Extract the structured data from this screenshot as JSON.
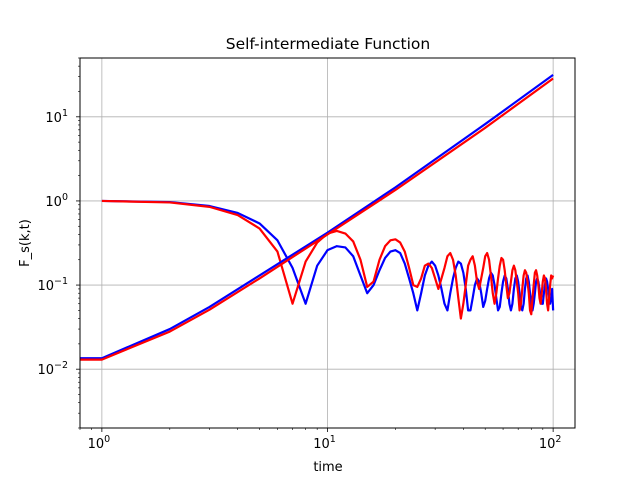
{
  "chart_data": {
    "type": "line",
    "title": "Self-intermediate Function",
    "xlabel": "time",
    "ylabel": "F_s(k,t)",
    "xscale": "log",
    "yscale": "log",
    "xlim": [
      0.8,
      125
    ],
    "ylim": [
      0.002,
      50
    ],
    "grid": true,
    "x_ticks": [
      {
        "value": 1,
        "base": "10",
        "exp": "0"
      },
      {
        "value": 10,
        "base": "10",
        "exp": "1"
      },
      {
        "value": 100,
        "base": "10",
        "exp": "2"
      }
    ],
    "y_ticks": [
      {
        "value": 0.01,
        "base": "10",
        "exp": "−2"
      },
      {
        "value": 0.1,
        "base": "10",
        "exp": "−1"
      },
      {
        "value": 1,
        "base": "10",
        "exp": "0"
      },
      {
        "value": 10,
        "base": "10",
        "exp": "1"
      }
    ],
    "series": [
      {
        "color": "#0000ff",
        "x": [
          1,
          2,
          3,
          4,
          5,
          6,
          7,
          8,
          9,
          10,
          11,
          12,
          13,
          14,
          15,
          16,
          17,
          18,
          19,
          20,
          21,
          22,
          23,
          24,
          25,
          26,
          27,
          28,
          29,
          30,
          31,
          32,
          33,
          34,
          35,
          36,
          37,
          38,
          39,
          40,
          41,
          42,
          43,
          44,
          45,
          46,
          47,
          48,
          49,
          50,
          51,
          52,
          53,
          54,
          55,
          56,
          57,
          58,
          59,
          60,
          61,
          62,
          63,
          64,
          65,
          66,
          67,
          68,
          69,
          70,
          71,
          72,
          73,
          74,
          75,
          76,
          77,
          78,
          79,
          80,
          81,
          82,
          83,
          84,
          85,
          86,
          87,
          88,
          89,
          90,
          91,
          92,
          93,
          94,
          95,
          96,
          97,
          98,
          99,
          100
        ],
        "y": [
          1.0,
          0.97,
          0.87,
          0.72,
          0.54,
          0.34,
          0.16,
          0.06,
          0.17,
          0.26,
          0.29,
          0.28,
          0.22,
          0.13,
          0.08,
          0.1,
          0.15,
          0.21,
          0.25,
          0.26,
          0.24,
          0.18,
          0.12,
          0.08,
          0.05,
          0.08,
          0.13,
          0.17,
          0.19,
          0.17,
          0.13,
          0.09,
          0.06,
          0.05,
          0.08,
          0.12,
          0.16,
          0.19,
          0.18,
          0.14,
          0.09,
          0.05,
          0.05,
          0.07,
          0.1,
          0.12,
          0.11,
          0.08,
          0.055,
          0.065,
          0.09,
          0.12,
          0.14,
          0.13,
          0.1,
          0.07,
          0.05,
          0.055,
          0.08,
          0.11,
          0.13,
          0.12,
          0.09,
          0.06,
          0.05,
          0.06,
          0.09,
          0.12,
          0.13,
          0.11,
          0.08,
          0.055,
          0.05,
          0.06,
          0.09,
          0.12,
          0.13,
          0.11,
          0.08,
          0.06,
          0.05,
          0.06,
          0.08,
          0.11,
          0.12,
          0.11,
          0.09,
          0.07,
          0.06,
          0.06,
          0.08,
          0.1,
          0.12,
          0.11,
          0.09,
          0.07,
          0.06,
          0.07,
          0.09,
          0.05
        ]
      },
      {
        "color": "#ff0000",
        "x": [
          1,
          2,
          3,
          4,
          5,
          6,
          7,
          8,
          9,
          10,
          11,
          12,
          13,
          14,
          15,
          16,
          17,
          18,
          19,
          20,
          21,
          22,
          23,
          24,
          25,
          26,
          27,
          28,
          29,
          30,
          31,
          32,
          33,
          34,
          35,
          36,
          37,
          38,
          39,
          40,
          41,
          42,
          43,
          44,
          45,
          46,
          47,
          48,
          49,
          50,
          51,
          52,
          53,
          54,
          55,
          56,
          57,
          58,
          59,
          60,
          61,
          62,
          63,
          64,
          65,
          66,
          67,
          68,
          69,
          70,
          71,
          72,
          73,
          74,
          75,
          76,
          77,
          78,
          79,
          80,
          81,
          82,
          83,
          84,
          85,
          86,
          87,
          88,
          89,
          90,
          91,
          92,
          93,
          94,
          95,
          96,
          97,
          98,
          99,
          100
        ],
        "y": [
          1.0,
          0.96,
          0.85,
          0.68,
          0.47,
          0.25,
          0.06,
          0.19,
          0.32,
          0.41,
          0.44,
          0.41,
          0.33,
          0.2,
          0.095,
          0.11,
          0.2,
          0.29,
          0.34,
          0.35,
          0.32,
          0.25,
          0.16,
          0.1,
          0.095,
          0.12,
          0.17,
          0.18,
          0.16,
          0.12,
          0.09,
          0.12,
          0.16,
          0.22,
          0.24,
          0.2,
          0.13,
          0.07,
          0.04,
          0.06,
          0.1,
          0.17,
          0.2,
          0.22,
          0.17,
          0.11,
          0.09,
          0.12,
          0.16,
          0.22,
          0.24,
          0.2,
          0.13,
          0.08,
          0.06,
          0.08,
          0.12,
          0.17,
          0.21,
          0.2,
          0.15,
          0.1,
          0.07,
          0.08,
          0.11,
          0.15,
          0.17,
          0.15,
          0.11,
          0.08,
          0.05,
          0.06,
          0.09,
          0.13,
          0.15,
          0.14,
          0.11,
          0.08,
          0.05,
          0.045,
          0.07,
          0.1,
          0.14,
          0.15,
          0.13,
          0.1,
          0.07,
          0.06,
          0.08,
          0.11,
          0.13,
          0.12,
          0.09,
          0.06,
          0.05,
          0.07,
          0.1,
          0.13,
          0.12,
          0.13
        ]
      },
      {
        "color": "#0000ff",
        "x": [
          0.8,
          1,
          2,
          3,
          5,
          10,
          20,
          50,
          100
        ],
        "y": [
          0.0135,
          0.0135,
          0.03,
          0.055,
          0.13,
          0.42,
          1.45,
          8.2,
          31.5
        ]
      },
      {
        "color": "#ff0000",
        "x": [
          0.8,
          1,
          2,
          3,
          5,
          10,
          20,
          50,
          100
        ],
        "y": [
          0.013,
          0.013,
          0.028,
          0.051,
          0.12,
          0.4,
          1.35,
          7.4,
          28.5
        ]
      }
    ]
  }
}
